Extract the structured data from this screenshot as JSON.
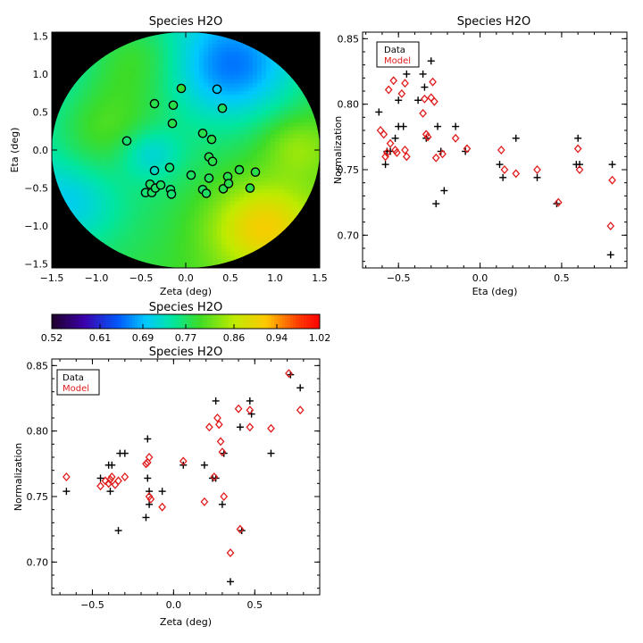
{
  "chart_data": [
    {
      "type": "heatmap",
      "title": "Species H2O",
      "xlabel": "Zeta (deg)",
      "ylabel": "Eta (deg)",
      "xlim": [
        -1.5,
        1.5
      ],
      "ylim": [
        -1.55,
        1.55
      ],
      "x_ticks": [
        "−1.5",
        "−1.0",
        "−0.5",
        "0.0",
        "0.5",
        "1.0",
        "1.5"
      ],
      "y_ticks": [
        "−1.5",
        "−1.0",
        "−0.5",
        "0.0",
        "0.5",
        "1.0",
        "1.5"
      ],
      "field_radius_deg": 1.5,
      "points": [
        {
          "x": -0.66,
          "y": 0.12,
          "v": 0.765
        },
        {
          "x": -0.35,
          "y": -0.27,
          "v": 0.725
        },
        {
          "x": -0.45,
          "y": -0.56,
          "v": 0.765
        },
        {
          "x": -0.4,
          "y": -0.45,
          "v": 0.77
        },
        {
          "x": -0.38,
          "y": -0.56,
          "v": 0.77
        },
        {
          "x": -0.34,
          "y": -0.5,
          "v": 0.77
        },
        {
          "x": -0.28,
          "y": -0.46,
          "v": 0.77
        },
        {
          "x": -0.35,
          "y": 0.61,
          "v": 0.78
        },
        {
          "x": -0.17,
          "y": -0.52,
          "v": 0.765
        },
        {
          "x": -0.18,
          "y": -0.23,
          "v": 0.76
        },
        {
          "x": -0.16,
          "y": -0.58,
          "v": 0.765
        },
        {
          "x": -0.15,
          "y": 0.35,
          "v": 0.78
        },
        {
          "x": -0.14,
          "y": 0.59,
          "v": 0.78
        },
        {
          "x": -0.05,
          "y": 0.81,
          "v": 0.79
        },
        {
          "x": 0.06,
          "y": -0.33,
          "v": 0.77
        },
        {
          "x": 0.19,
          "y": 0.22,
          "v": 0.78
        },
        {
          "x": 0.19,
          "y": -0.52,
          "v": 0.77
        },
        {
          "x": 0.23,
          "y": -0.57,
          "v": 0.77
        },
        {
          "x": 0.26,
          "y": -0.09,
          "v": 0.78
        },
        {
          "x": 0.26,
          "y": -0.37,
          "v": 0.775
        },
        {
          "x": 0.29,
          "y": 0.14,
          "v": 0.78
        },
        {
          "x": 0.3,
          "y": -0.15,
          "v": 0.78
        },
        {
          "x": 0.35,
          "y": 0.8,
          "v": 0.7
        },
        {
          "x": 0.41,
          "y": 0.55,
          "v": 0.77
        },
        {
          "x": 0.42,
          "y": -0.51,
          "v": 0.78
        },
        {
          "x": 0.47,
          "y": -0.35,
          "v": 0.78
        },
        {
          "x": 0.48,
          "y": -0.44,
          "v": 0.78
        },
        {
          "x": 0.6,
          "y": -0.26,
          "v": 0.78
        },
        {
          "x": 0.72,
          "y": -0.5,
          "v": 0.78
        },
        {
          "x": 0.78,
          "y": -0.29,
          "v": 0.78
        }
      ]
    },
    {
      "type": "colorbar",
      "title": "Species H2O",
      "min": 0.52,
      "max": 1.02,
      "tick_labels": [
        "0.52",
        "0.61",
        "0.69",
        "0.77",
        "0.86",
        "0.94",
        "1.02"
      ]
    },
    {
      "type": "scatter",
      "title": "Species H2O",
      "xlabel": "Eta (deg)",
      "ylabel": "Normalization",
      "xlim": [
        -0.72,
        0.9
      ],
      "ylim": [
        0.675,
        0.855
      ],
      "x_ticks": [
        "−0.5",
        "0.0",
        "0.5"
      ],
      "y_ticks": [
        "0.70",
        "0.75",
        "0.80",
        "0.85"
      ],
      "legend": [
        "Data",
        "Model"
      ],
      "legend_position": "top-left",
      "series": [
        {
          "name": "Data",
          "marker": "plus",
          "color": "#000000",
          "x": [
            -0.62,
            -0.58,
            -0.57,
            -0.55,
            -0.52,
            -0.5,
            -0.5,
            -0.47,
            -0.45,
            -0.38,
            -0.35,
            -0.34,
            -0.33,
            -0.3,
            -0.27,
            -0.26,
            -0.24,
            -0.22,
            -0.15,
            -0.09,
            0.12,
            0.14,
            0.22,
            0.35,
            0.47,
            0.59,
            0.6,
            0.61,
            0.8,
            0.81
          ],
          "y": [
            0.794,
            0.754,
            0.764,
            0.764,
            0.774,
            0.783,
            0.803,
            0.783,
            0.823,
            0.803,
            0.823,
            0.813,
            0.774,
            0.833,
            0.724,
            0.783,
            0.764,
            0.734,
            0.783,
            0.764,
            0.754,
            0.744,
            0.774,
            0.744,
            0.724,
            0.754,
            0.774,
            0.754,
            0.685,
            0.754
          ]
        },
        {
          "name": "Model",
          "marker": "diamond",
          "color": "#e11b1b",
          "x": [
            -0.61,
            -0.59,
            -0.58,
            -0.57,
            -0.56,
            -0.55,
            -0.53,
            -0.52,
            -0.51,
            -0.49,
            -0.48,
            -0.46,
            -0.46,
            -0.45,
            -0.35,
            -0.34,
            -0.33,
            -0.32,
            -0.3,
            -0.29,
            -0.28,
            -0.27,
            -0.23,
            -0.15,
            -0.08,
            0.13,
            0.15,
            0.22,
            0.35,
            0.48,
            0.6,
            0.61,
            0.8,
            0.81
          ],
          "y": [
            0.78,
            0.777,
            0.76,
            0.763,
            0.811,
            0.77,
            0.818,
            0.765,
            0.763,
            0.844,
            0.808,
            0.765,
            0.816,
            0.76,
            0.793,
            0.804,
            0.777,
            0.775,
            0.805,
            0.817,
            0.802,
            0.759,
            0.762,
            0.774,
            0.766,
            0.765,
            0.75,
            0.747,
            0.75,
            0.725,
            0.766,
            0.75,
            0.707,
            0.742
          ]
        }
      ]
    },
    {
      "type": "scatter",
      "title": "Species H2O",
      "xlabel": "Zeta (deg)",
      "ylabel": "Normalization",
      "xlim": [
        -0.75,
        0.9
      ],
      "ylim": [
        0.675,
        0.855
      ],
      "x_ticks": [
        "−0.5",
        "0.0",
        "0.5"
      ],
      "y_ticks": [
        "0.70",
        "0.75",
        "0.80",
        "0.85"
      ],
      "legend": [
        "Data",
        "Model"
      ],
      "legend_position": "top-left",
      "series": [
        {
          "name": "Data",
          "marker": "plus",
          "color": "#000000",
          "x": [
            -0.66,
            -0.45,
            -0.4,
            -0.39,
            -0.38,
            -0.34,
            -0.33,
            -0.3,
            -0.17,
            -0.16,
            -0.16,
            -0.15,
            -0.15,
            -0.07,
            0.06,
            0.19,
            0.24,
            0.26,
            0.26,
            0.3,
            0.31,
            0.35,
            0.41,
            0.42,
            0.47,
            0.48,
            0.6,
            0.72,
            0.78
          ],
          "y": [
            0.754,
            0.764,
            0.774,
            0.754,
            0.774,
            0.724,
            0.783,
            0.783,
            0.734,
            0.794,
            0.764,
            0.754,
            0.744,
            0.754,
            0.774,
            0.774,
            0.764,
            0.764,
            0.823,
            0.744,
            0.783,
            0.685,
            0.803,
            0.724,
            0.823,
            0.813,
            0.783,
            0.843,
            0.833
          ]
        },
        {
          "name": "Model",
          "marker": "diamond",
          "color": "#e11b1b",
          "x": [
            -0.66,
            -0.45,
            -0.42,
            -0.4,
            -0.39,
            -0.38,
            -0.36,
            -0.34,
            -0.3,
            -0.17,
            -0.16,
            -0.15,
            -0.15,
            -0.14,
            -0.07,
            0.06,
            0.19,
            0.22,
            0.25,
            0.27,
            0.28,
            0.29,
            0.3,
            0.31,
            0.35,
            0.4,
            0.41,
            0.47,
            0.47,
            0.6,
            0.71,
            0.78
          ],
          "y": [
            0.765,
            0.758,
            0.762,
            0.76,
            0.763,
            0.765,
            0.759,
            0.762,
            0.765,
            0.775,
            0.776,
            0.78,
            0.75,
            0.748,
            0.742,
            0.777,
            0.746,
            0.803,
            0.765,
            0.81,
            0.805,
            0.792,
            0.784,
            0.75,
            0.707,
            0.817,
            0.725,
            0.803,
            0.816,
            0.802,
            0.844,
            0.816
          ]
        }
      ]
    }
  ]
}
